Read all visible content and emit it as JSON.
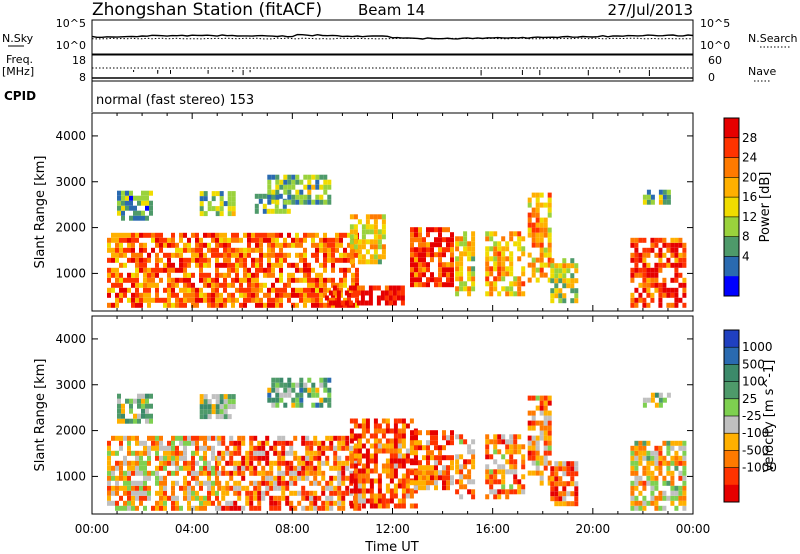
{
  "header": {
    "title": "Zhongshan Station (fitACF)",
    "beam": "Beam 14",
    "date": "27/Jul/2013"
  },
  "top_panels": {
    "nsky_label": "N.Sky",
    "nsky_ticks": [
      "10^5",
      "10^0"
    ],
    "nsearch_label": "N.Search",
    "nsearch_ticks": [
      "10^5",
      "10^0"
    ],
    "freq_label": "Freq.",
    "freq_unit": "[MHz]",
    "freq_ticks": [
      "18",
      "8"
    ],
    "nave_label": "Nave",
    "nave_ticks": [
      "60",
      "0"
    ],
    "cpid_label": "CPID",
    "cpid_text": "normal (fast stereo) 153"
  },
  "chart_data": [
    {
      "type": "heatmap",
      "name": "power-panel",
      "ylabel": "Slant Range [km]",
      "xlabel": "",
      "ylim": [
        180,
        4500
      ],
      "yticks": [
        "4000",
        "3000",
        "2000",
        "1000"
      ],
      "ytick_values": [
        4000,
        3000,
        2000,
        1000
      ],
      "xlim": [
        0,
        24
      ],
      "colorbar": {
        "label": "Power [dB]",
        "ticks": [
          "28",
          "24",
          "20",
          "16",
          "12",
          "8",
          "4"
        ],
        "colors": [
          "#e60000",
          "#ff3300",
          "#ff7a00",
          "#ffb000",
          "#f0dc00",
          "#9ad23c",
          "#4e9a6a",
          "#2a6ab0",
          "#0000ff"
        ]
      },
      "echo_regions": [
        {
          "t0": 0.6,
          "t1": 10.6,
          "r0": 250,
          "r1": 1800,
          "level": 0.75
        },
        {
          "t0": 1.0,
          "t1": 2.4,
          "r0": 2150,
          "r1": 2750,
          "level": 0.3
        },
        {
          "t0": 4.3,
          "t1": 5.6,
          "r0": 2250,
          "r1": 2750,
          "level": 0.35
        },
        {
          "t0": 6.5,
          "t1": 7.8,
          "r0": 2300,
          "r1": 2700,
          "level": 0.3
        },
        {
          "t0": 7.0,
          "t1": 9.5,
          "r0": 2500,
          "r1": 3100,
          "level": 0.35
        },
        {
          "t0": 10.3,
          "t1": 11.6,
          "r0": 1200,
          "r1": 2200,
          "level": 0.55
        },
        {
          "t0": 9.3,
          "t1": 12.4,
          "r0": 300,
          "r1": 700,
          "level": 0.95
        },
        {
          "t0": 12.7,
          "t1": 14.3,
          "r0": 700,
          "r1": 1900,
          "level": 0.85
        },
        {
          "t0": 14.5,
          "t1": 15.2,
          "r0": 500,
          "r1": 1900,
          "level": 0.55
        },
        {
          "t0": 15.7,
          "t1": 17.2,
          "r0": 500,
          "r1": 1900,
          "level": 0.6
        },
        {
          "t0": 17.4,
          "t1": 18.3,
          "r0": 800,
          "r1": 2700,
          "level": 0.65
        },
        {
          "t0": 18.3,
          "t1": 19.3,
          "r0": 350,
          "r1": 1300,
          "level": 0.45
        },
        {
          "t0": 21.5,
          "t1": 23.7,
          "r0": 250,
          "r1": 1700,
          "level": 0.8
        },
        {
          "t0": 22.0,
          "t1": 23.0,
          "r0": 2500,
          "r1": 2800,
          "level": 0.35
        }
      ]
    },
    {
      "type": "heatmap",
      "name": "velocity-panel",
      "ylabel": "Slant Range [km]",
      "xlabel": "Time UT",
      "ylim": [
        180,
        4500
      ],
      "yticks": [
        "4000",
        "3000",
        "2000",
        "1000"
      ],
      "ytick_values": [
        4000,
        3000,
        2000,
        1000
      ],
      "xlim": [
        0,
        24
      ],
      "xticks": [
        "00:00",
        "04:00",
        "08:00",
        "12:00",
        "16:00",
        "20:00",
        "00:00"
      ],
      "xtick_values": [
        0,
        4,
        8,
        12,
        16,
        20,
        24
      ],
      "colorbar": {
        "label": "Velocity [m s^-1]",
        "ticks": [
          "1000",
          "500",
          "100",
          "25",
          "-25",
          "-100",
          "-500",
          "-1000"
        ],
        "colors": [
          "#2040c0",
          "#2a6ab0",
          "#3c8a6a",
          "#4e9a6a",
          "#7ed050",
          "#c0c0c0",
          "#ffb000",
          "#ff7a00",
          "#ff3300",
          "#e60000"
        ]
      },
      "echo_regions": [
        {
          "t0": 0.6,
          "t1": 5.0,
          "r0": 250,
          "r1": 1800,
          "level": 0.35
        },
        {
          "t0": 5.0,
          "t1": 10.6,
          "r0": 250,
          "r1": 1800,
          "level": 0.25
        },
        {
          "t0": 1.0,
          "t1": 2.4,
          "r0": 2150,
          "r1": 2750,
          "level": 0.55
        },
        {
          "t0": 4.3,
          "t1": 5.6,
          "r0": 2250,
          "r1": 2750,
          "level": 0.55
        },
        {
          "t0": 7.0,
          "t1": 9.5,
          "r0": 2500,
          "r1": 3100,
          "level": 0.6
        },
        {
          "t0": 10.3,
          "t1": 13.0,
          "r0": 300,
          "r1": 2200,
          "level": 0.2
        },
        {
          "t0": 12.7,
          "t1": 14.3,
          "r0": 700,
          "r1": 1900,
          "level": 0.25
        },
        {
          "t0": 14.5,
          "t1": 15.2,
          "r0": 500,
          "r1": 1900,
          "level": 0.3
        },
        {
          "t0": 15.7,
          "t1": 17.2,
          "r0": 500,
          "r1": 1900,
          "level": 0.3
        },
        {
          "t0": 17.4,
          "t1": 18.3,
          "r0": 800,
          "r1": 2700,
          "level": 0.3
        },
        {
          "t0": 18.3,
          "t1": 19.3,
          "r0": 350,
          "r1": 1300,
          "level": 0.25
        },
        {
          "t0": 21.5,
          "t1": 23.7,
          "r0": 250,
          "r1": 1700,
          "level": 0.4
        },
        {
          "t0": 22.0,
          "t1": 23.0,
          "r0": 2500,
          "r1": 2800,
          "level": 0.55
        }
      ]
    }
  ]
}
